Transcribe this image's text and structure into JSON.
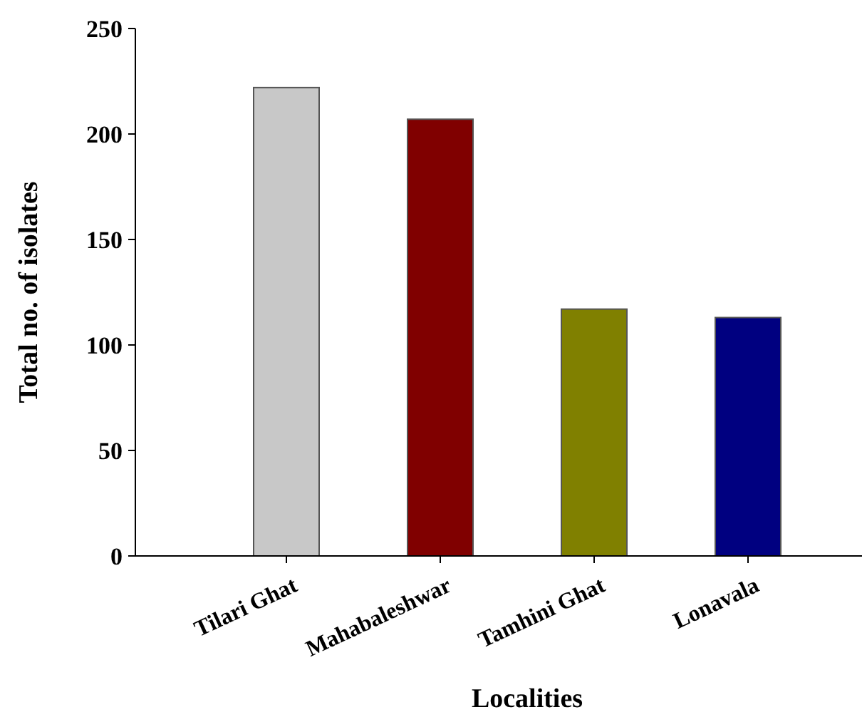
{
  "chart_data": {
    "type": "bar",
    "xlabel": "Localities",
    "ylabel": "Total no. of isolates",
    "categories": [
      "Tilari Ghat",
      "Mahabaleshwar",
      "Tamhini Ghat",
      "Lonavala"
    ],
    "values": [
      222,
      207,
      117,
      113
    ],
    "colors": [
      "#c8c8c8",
      "#800000",
      "#808000",
      "#000080"
    ],
    "ylim": [
      0,
      250
    ],
    "yticks": [
      0,
      50,
      100,
      150,
      200,
      250
    ],
    "grid": false
  }
}
